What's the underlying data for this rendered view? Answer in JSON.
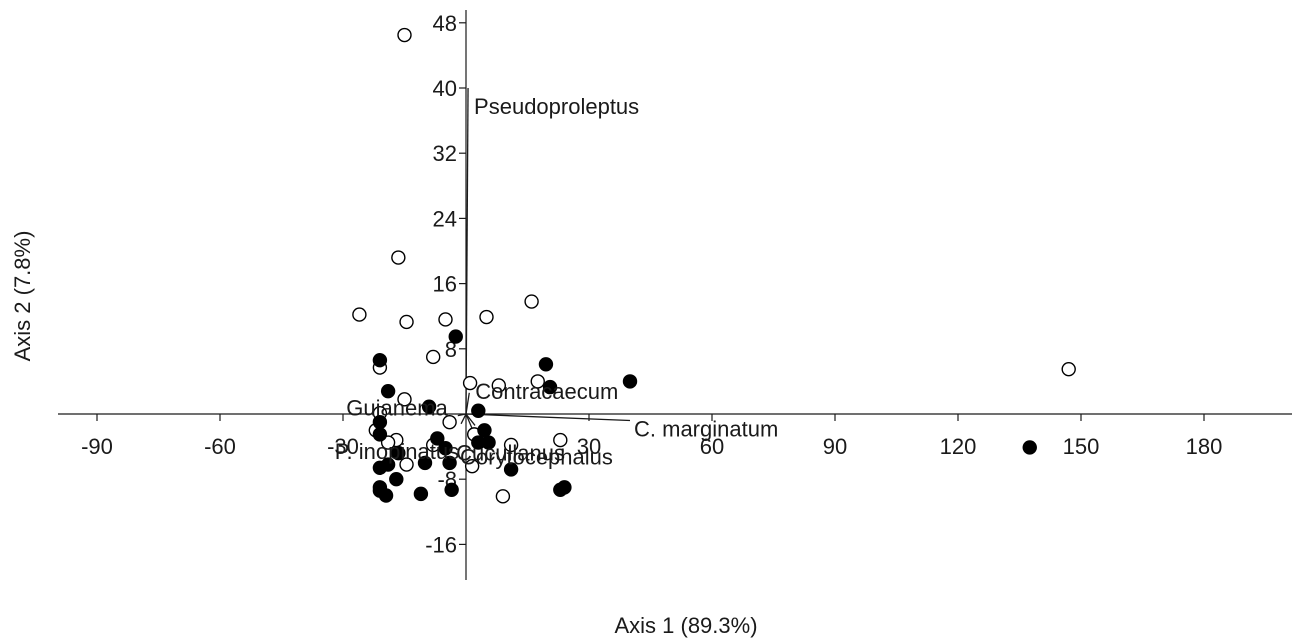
{
  "chart_data": {
    "type": "scatter",
    "title": "",
    "xlabel": "Axis 1 (89.3%)",
    "ylabel": "Axis 2 (7.8%)",
    "xlim": [
      -100,
      195
    ],
    "ylim": [
      -20,
      50
    ],
    "xticks": [
      -90,
      -60,
      -30,
      30,
      60,
      90,
      120,
      150,
      180
    ],
    "yticks": [
      -16,
      -8,
      8,
      16,
      24,
      32,
      40,
      48
    ],
    "grid": false,
    "legend": "none",
    "colors": {
      "axis": "#1a1a1a",
      "filled": "#000000",
      "open_fill": "#ffffff",
      "stroke": "#000000"
    },
    "series": [
      {
        "marker": "open-circle",
        "points": [
          [
            -15,
            46.5
          ],
          [
            -16.5,
            19.2
          ],
          [
            -26,
            12.2
          ],
          [
            -14.5,
            11.3
          ],
          [
            -5,
            11.6
          ],
          [
            5,
            11.9
          ],
          [
            16,
            13.8
          ],
          [
            -8,
            7.0
          ],
          [
            -21,
            5.7
          ],
          [
            1,
            3.8
          ],
          [
            8,
            3.5
          ],
          [
            17.5,
            4.0
          ],
          [
            147,
            5.5
          ],
          [
            -15,
            1.8
          ],
          [
            -21,
            0.1
          ],
          [
            -4,
            -1.0
          ],
          [
            -22,
            -2.0
          ],
          [
            2,
            -2.5
          ],
          [
            -17,
            -3.2
          ],
          [
            -19,
            -3.5
          ],
          [
            -8,
            -3.8
          ],
          [
            11,
            -3.8
          ],
          [
            23,
            -3.2
          ],
          [
            -14.5,
            -6.2
          ],
          [
            1.5,
            -6.4
          ],
          [
            9,
            -10.1
          ]
        ]
      },
      {
        "marker": "filled-circle",
        "points": [
          [
            -21,
            6.6
          ],
          [
            -2.5,
            9.5
          ],
          [
            19.5,
            6.1
          ],
          [
            40,
            4.0
          ],
          [
            -19,
            2.8
          ],
          [
            20.5,
            3.3
          ],
          [
            -9,
            0.9
          ],
          [
            3,
            0.4
          ],
          [
            -21,
            -1.0
          ],
          [
            4.5,
            -2.0
          ],
          [
            -21,
            -2.5
          ],
          [
            -7,
            -3.0
          ],
          [
            -5,
            -4.2
          ],
          [
            3,
            -3.5
          ],
          [
            5.5,
            -3.5
          ],
          [
            -16.5,
            -4.8
          ],
          [
            -19,
            -6.2
          ],
          [
            -10,
            -6.0
          ],
          [
            -4,
            -6.0
          ],
          [
            11,
            -6.8
          ],
          [
            -21,
            -6.6
          ],
          [
            137.5,
            -4.1
          ],
          [
            -17,
            -8.0
          ],
          [
            -21,
            -9.0
          ],
          [
            -21,
            -9.4
          ],
          [
            24,
            -9.0
          ],
          [
            -19.5,
            -10.0
          ],
          [
            -11,
            -9.8
          ],
          [
            -3.5,
            -9.3
          ],
          [
            23,
            -9.3
          ]
        ]
      }
    ],
    "vectors": [
      {
        "label": "Pseudoproleptus",
        "x": 0.5,
        "y": 40
      },
      {
        "label": "Contracaecum",
        "x": 0.8,
        "y": 2.6
      },
      {
        "label": "C. marginatum",
        "x": 40,
        "y": -0.8
      },
      {
        "label": "Guianema",
        "x": -2,
        "y": -0.2
      },
      {
        "label": "P. inopinatus",
        "x": -1.2,
        "y": -1.2
      },
      {
        "label": "Cucullanus",
        "x": 1.5,
        "y": -1.8
      },
      {
        "label": "Corytocephalus",
        "x": 2.2,
        "y": -1.4
      }
    ]
  }
}
